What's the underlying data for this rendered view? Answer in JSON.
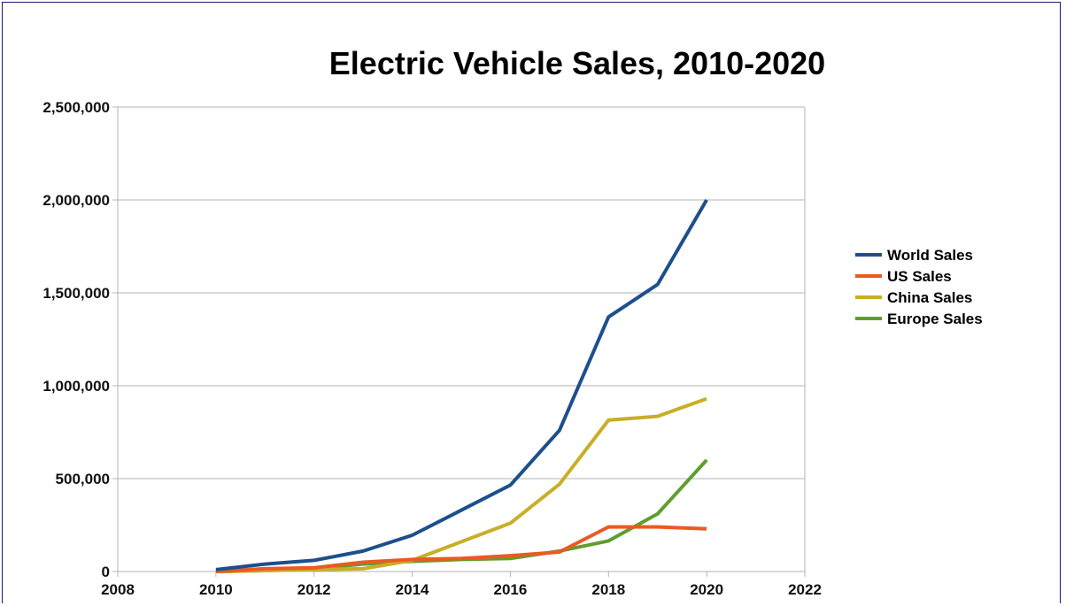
{
  "chart_data": {
    "type": "line",
    "title": "Electric Vehicle Sales, 2010-2020",
    "xlabel": "",
    "ylabel": "",
    "xlim": [
      2008,
      2022
    ],
    "ylim": [
      0,
      2500000
    ],
    "x_ticks": [
      "2008",
      "2010",
      "2012",
      "2014",
      "2016",
      "2018",
      "2020",
      "2022"
    ],
    "y_ticks": [
      "0",
      "500,000",
      "1,000,000",
      "1,500,000",
      "2,000,000",
      "2,500,000"
    ],
    "grid": "horizontal",
    "legend_position": "right",
    "x": [
      2010,
      2011,
      2012,
      2013,
      2014,
      2015,
      2016,
      2017,
      2018,
      2019,
      2020
    ],
    "series": [
      {
        "name": "World Sales",
        "color": "#1d4f8c",
        "values": [
          10000,
          40000,
          60000,
          110000,
          195000,
          330000,
          465000,
          760000,
          1370000,
          1545000,
          2000000
        ]
      },
      {
        "name": "US Sales",
        "color": "#ea5a22",
        "values": [
          0,
          15000,
          20000,
          50000,
          65000,
          70000,
          85000,
          105000,
          240000,
          240000,
          230000
        ]
      },
      {
        "name": "China Sales",
        "color": "#c9ae26",
        "values": [
          0,
          5000,
          10000,
          15000,
          60000,
          160000,
          260000,
          470000,
          815000,
          835000,
          930000
        ]
      },
      {
        "name": "Europe Sales",
        "color": "#5f9e2e",
        "values": [
          0,
          5000,
          15000,
          40000,
          55000,
          65000,
          70000,
          110000,
          165000,
          310000,
          600000
        ]
      }
    ]
  }
}
